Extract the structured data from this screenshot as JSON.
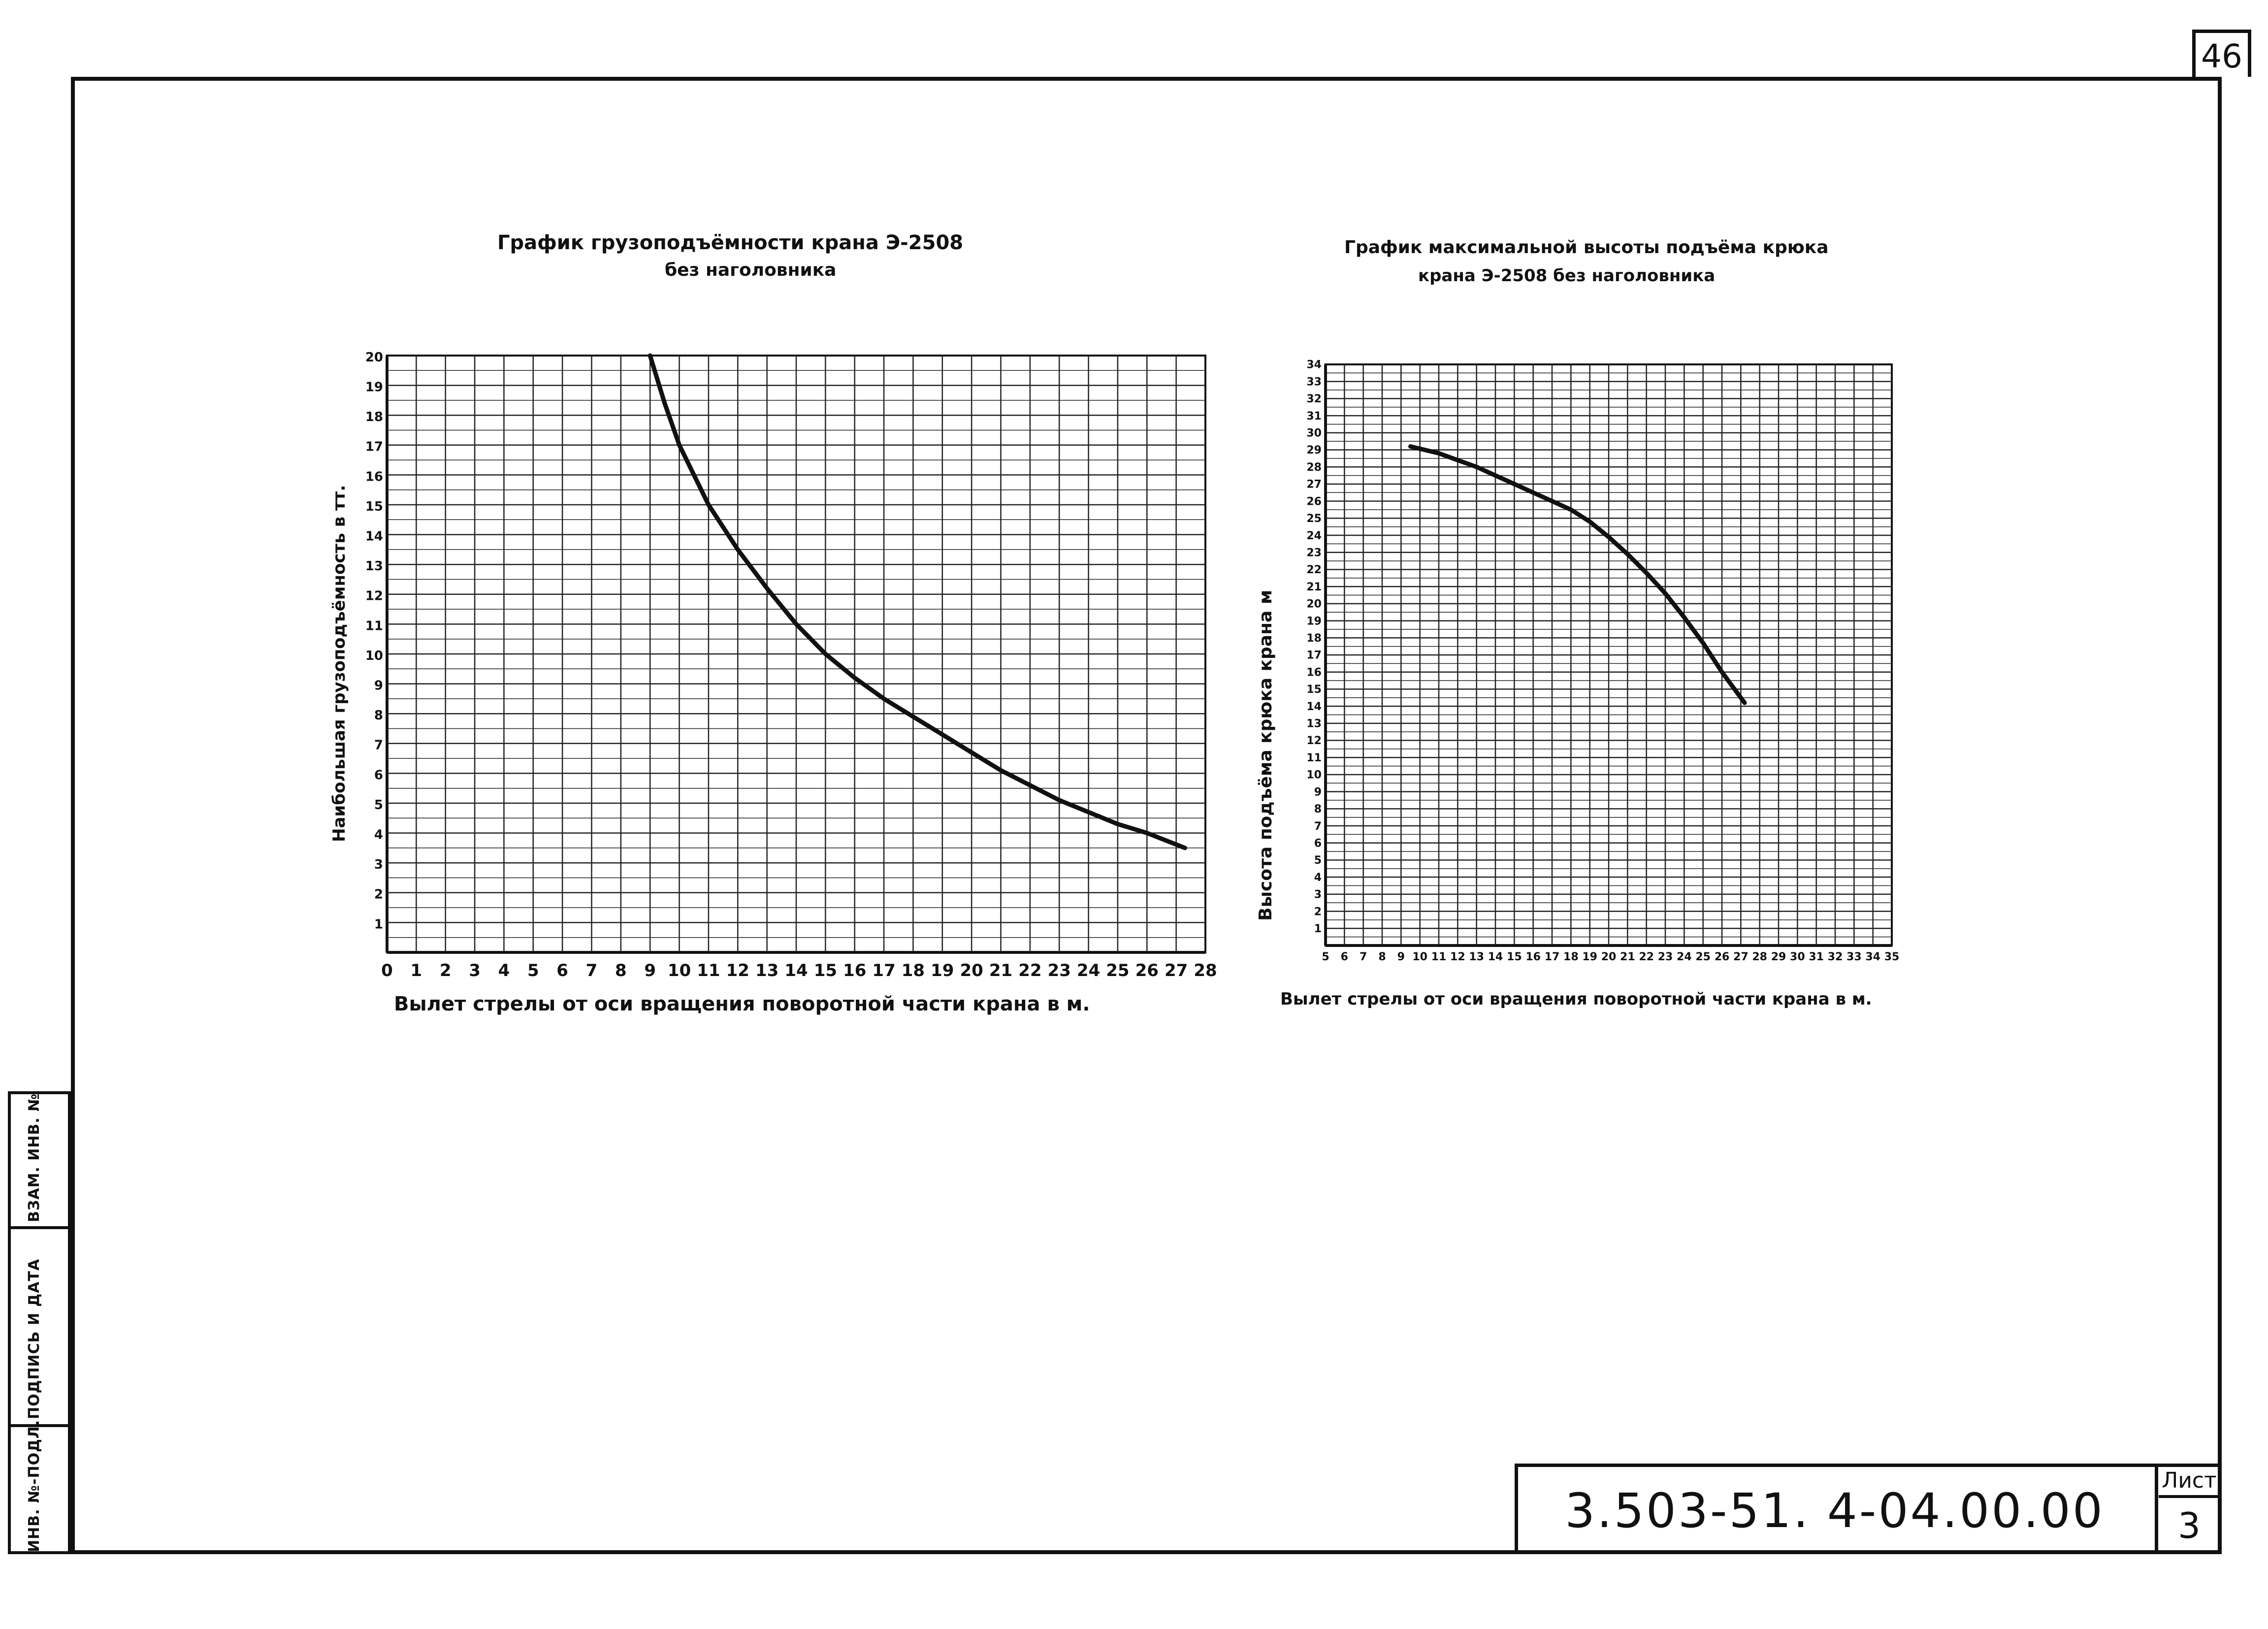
{
  "sheet_number_top": "46",
  "side_stamp": {
    "label_1": "ИНВ. №-ПОДЛ.",
    "label_2": "ПОДПИСЬ И ДАТА",
    "label_3": "ВЗАМ. ИНВ. №"
  },
  "title_block": {
    "code": "3.503-51. 4-04.00.00",
    "list_label": "Лист",
    "list_number": "3"
  },
  "chart_data": [
    {
      "type": "line",
      "title": "График грузоподъёмности крана Э-2508",
      "subtitle": "без наголовника",
      "xlabel": "Вылет стрелы от оси вращения поворотной части крана в м.",
      "ylabel": "Наибольшая грузоподъёмность в тт.",
      "xlim": [
        0,
        28
      ],
      "ylim": [
        0,
        20
      ],
      "x_ticks": [
        "0",
        "1",
        "2",
        "3",
        "4",
        "5",
        "6",
        "7",
        "8",
        "9",
        "10",
        "11",
        "12",
        "13",
        "14",
        "15",
        "16",
        "17",
        "18",
        "19",
        "20",
        "21",
        "22",
        "23",
        "24",
        "25",
        "26",
        "27",
        "28"
      ],
      "y_ticks": [
        "1",
        "2",
        "3",
        "4",
        "5",
        "6",
        "7",
        "8",
        "9",
        "10",
        "11",
        "12",
        "13",
        "14",
        "15",
        "16",
        "17",
        "18",
        "19",
        "20"
      ],
      "grid": true,
      "series": [
        {
          "x": [
            9.0,
            9.5,
            10,
            11,
            12,
            13,
            14,
            15,
            16,
            17,
            18,
            19,
            20,
            21,
            22,
            23,
            24,
            25,
            26,
            27.3
          ],
          "y": [
            20,
            18.4,
            17.0,
            15.0,
            13.5,
            12.2,
            11.0,
            10.0,
            9.2,
            8.5,
            7.9,
            7.3,
            6.7,
            6.1,
            5.6,
            5.1,
            4.7,
            4.3,
            4.0,
            3.5
          ]
        }
      ]
    },
    {
      "type": "line",
      "title": "График максимальной высоты подъёма крюка",
      "subtitle": "крана Э-2508 без наголовника",
      "xlabel": "Вылет стрелы от оси вращения поворотной части крана в м.",
      "ylabel": "Высота подъёма крюка крана м",
      "xlim": [
        5,
        35
      ],
      "ylim": [
        0,
        34
      ],
      "x_ticks": [
        "5",
        "6",
        "7",
        "8",
        "9",
        "10",
        "11",
        "12",
        "13",
        "14",
        "15",
        "16",
        "17",
        "18",
        "19",
        "20",
        "21",
        "22",
        "23",
        "24",
        "25",
        "26",
        "27",
        "28",
        "29",
        "30",
        "31",
        "32",
        "33",
        "34",
        "35"
      ],
      "y_ticks": [
        "1",
        "2",
        "3",
        "4",
        "5",
        "6",
        "7",
        "8",
        "9",
        "10",
        "11",
        "12",
        "13",
        "14",
        "15",
        "16",
        "17",
        "18",
        "19",
        "20",
        "21",
        "22",
        "23",
        "24",
        "25",
        "26",
        "27",
        "28",
        "29",
        "30",
        "31",
        "32",
        "33",
        "34"
      ],
      "grid": true,
      "series": [
        {
          "x": [
            9.5,
            11,
            12,
            13,
            14,
            15,
            16,
            17,
            18,
            19,
            20,
            21,
            22,
            23,
            24,
            25,
            26,
            27.2
          ],
          "y": [
            29.2,
            28.8,
            28.4,
            28.0,
            27.5,
            27.0,
            26.5,
            26.0,
            25.5,
            24.8,
            23.9,
            22.9,
            21.8,
            20.6,
            19.2,
            17.7,
            16.0,
            14.2
          ]
        }
      ]
    }
  ]
}
